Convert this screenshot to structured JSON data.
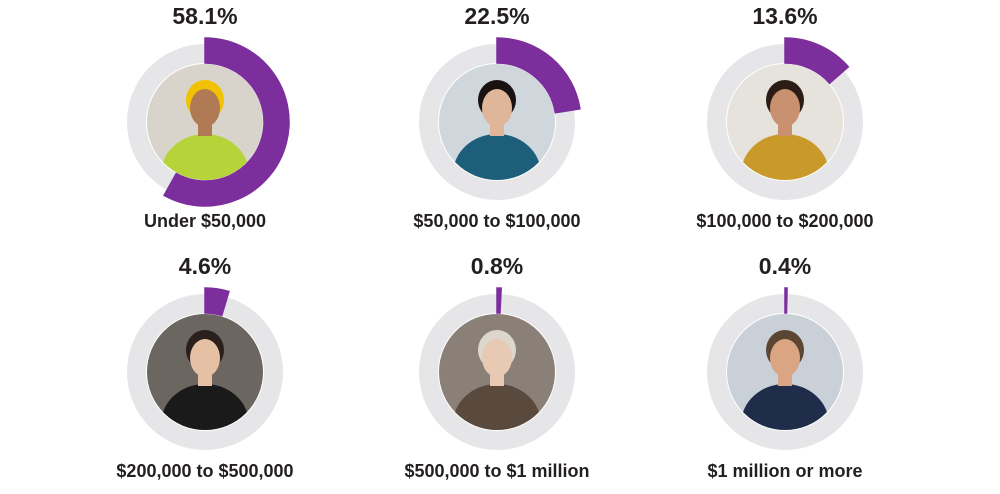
{
  "chart_data": {
    "type": "donut",
    "categories": [
      "Under $50,000",
      "$50,000 to $100,000",
      "$100,000 to $200,000",
      "$200,000 to $500,000",
      "$500,000 to $1 million",
      "$1 million or more"
    ],
    "values": [
      58.1,
      22.5,
      13.6,
      4.6,
      0.8,
      0.4
    ],
    "value_labels": [
      "58.1%",
      "22.5%",
      "13.6%",
      "4.6%",
      "0.8%",
      "0.4%"
    ],
    "color": "#7b2e9c",
    "track_color": "#e6e6e8"
  }
}
